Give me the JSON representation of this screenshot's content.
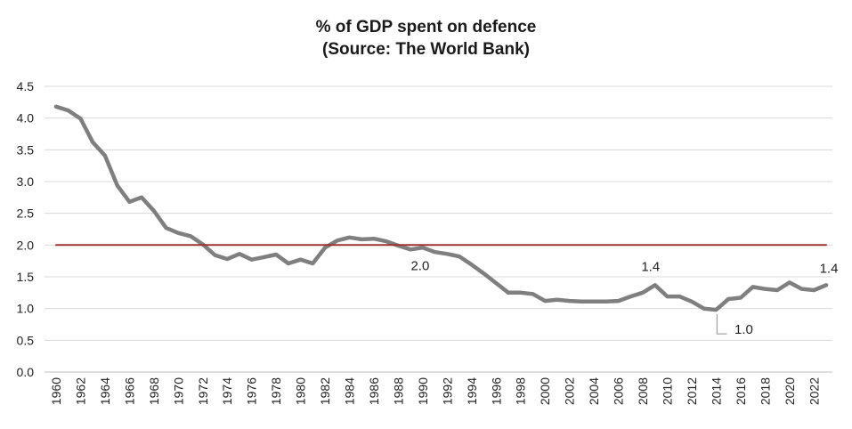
{
  "chart_data": {
    "type": "line",
    "title": "% of GDP spent on defence",
    "subtitle": "(Source: The World Bank)",
    "xlabel": "",
    "ylabel": "",
    "ylim": [
      0,
      4.5
    ],
    "yticks": [
      "0.0",
      "0.5",
      "1.0",
      "1.5",
      "2.0",
      "2.5",
      "3.0",
      "3.5",
      "4.0",
      "4.5"
    ],
    "xticks": [
      "1960",
      "1962",
      "1964",
      "1966",
      "1968",
      "1970",
      "1972",
      "1974",
      "1976",
      "1978",
      "1980",
      "1982",
      "1984",
      "1986",
      "1988",
      "1990",
      "1992",
      "1994",
      "1996",
      "1998",
      "2000",
      "2002",
      "2004",
      "2006",
      "2008",
      "2010",
      "2012",
      "2014",
      "2016",
      "2018",
      "2020",
      "2022"
    ],
    "grid": true,
    "legend": "none",
    "x": [
      1960,
      1961,
      1962,
      1963,
      1964,
      1965,
      1966,
      1967,
      1968,
      1969,
      1970,
      1971,
      1972,
      1973,
      1974,
      1975,
      1976,
      1977,
      1978,
      1979,
      1980,
      1981,
      1982,
      1983,
      1984,
      1985,
      1986,
      1987,
      1988,
      1989,
      1990,
      1991,
      1992,
      1993,
      1994,
      1995,
      1996,
      1997,
      1998,
      1999,
      2000,
      2001,
      2002,
      2003,
      2004,
      2005,
      2006,
      2007,
      2008,
      2009,
      2010,
      2011,
      2012,
      2013,
      2014,
      2015,
      2016,
      2017,
      2018,
      2019,
      2020,
      2021,
      2022,
      2023
    ],
    "series": [
      {
        "color": "#7f7f7f",
        "values": [
          4.18,
          4.12,
          3.99,
          3.62,
          3.41,
          2.94,
          2.68,
          2.75,
          2.54,
          2.27,
          2.19,
          2.14,
          2.01,
          1.84,
          1.78,
          1.86,
          1.77,
          1.81,
          1.85,
          1.71,
          1.77,
          1.71,
          1.96,
          2.07,
          2.12,
          2.09,
          2.1,
          2.06,
          1.99,
          1.93,
          1.96,
          1.89,
          1.86,
          1.82,
          1.69,
          1.55,
          1.4,
          1.25,
          1.25,
          1.23,
          1.12,
          1.14,
          1.12,
          1.11,
          1.11,
          1.11,
          1.12,
          1.19,
          1.25,
          1.37,
          1.19,
          1.19,
          1.11,
          1.0,
          0.98,
          1.15,
          1.17,
          1.34,
          1.31,
          1.29,
          1.41,
          1.31,
          1.29,
          1.37
        ]
      },
      {
        "color": "#a0322f",
        "values": [
          2.0,
          2.0,
          2.0,
          2.0,
          2.0,
          2.0,
          2.0,
          2.0,
          2.0,
          2.0,
          2.0,
          2.0,
          2.0,
          2.0,
          2.0,
          2.0,
          2.0,
          2.0,
          2.0,
          2.0,
          2.0,
          2.0,
          2.0,
          2.0,
          2.0,
          2.0,
          2.0,
          2.0,
          2.0,
          2.0,
          2.0,
          2.0,
          2.0,
          2.0,
          2.0,
          2.0,
          2.0,
          2.0,
          2.0,
          2.0,
          2.0,
          2.0,
          2.0,
          2.0,
          2.0,
          2.0,
          2.0,
          2.0,
          2.0,
          2.0,
          2.0,
          2.0,
          2.0,
          2.0,
          2.0,
          2.0,
          2.0,
          2.0,
          2.0,
          2.0,
          2.0,
          2.0,
          2.0,
          2.0
        ]
      }
    ],
    "annotations": [
      {
        "text": "2.0",
        "x": 1990,
        "y": 2.0
      },
      {
        "text": "1.4",
        "x": 2009,
        "y": 1.37
      },
      {
        "text": "1.0",
        "x": 2014,
        "y": 0.98
      },
      {
        "text": "1.4",
        "x": 2023,
        "y": 1.37
      }
    ]
  }
}
